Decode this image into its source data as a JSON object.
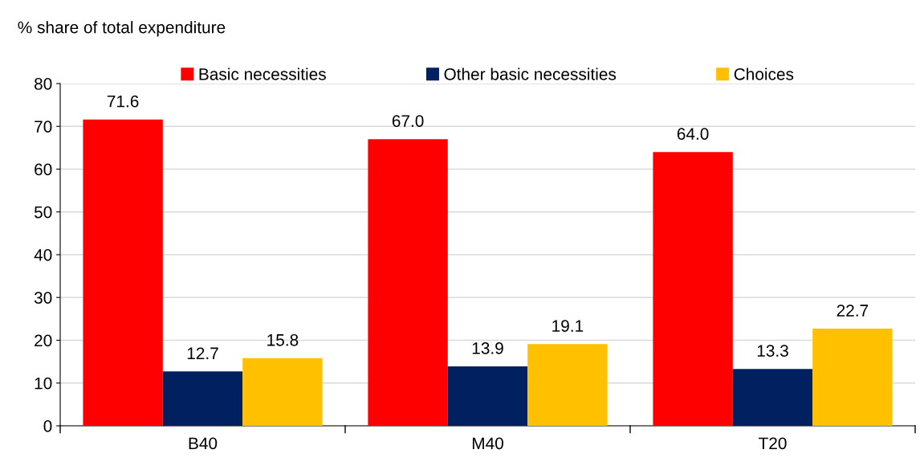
{
  "chart_data": {
    "type": "bar",
    "ylabel": "% share of total expenditure",
    "categories": [
      "B40",
      "M40",
      "T20"
    ],
    "series": [
      {
        "name": "Basic necessities",
        "color": "#ff0000",
        "values": [
          71.6,
          67.0,
          64.0
        ],
        "value_labels": [
          "71.6",
          "67.0",
          "64.0"
        ]
      },
      {
        "name": "Other basic necessities",
        "color": "#002060",
        "values": [
          12.7,
          13.9,
          13.3
        ],
        "value_labels": [
          "12.7",
          "13.9",
          "13.3"
        ]
      },
      {
        "name": "Choices",
        "color": "#ffc000",
        "values": [
          15.8,
          19.1,
          22.7
        ],
        "value_labels": [
          "15.8",
          "19.1",
          "22.7"
        ]
      }
    ],
    "ylim": [
      0,
      80
    ],
    "yticks": [
      0,
      10,
      20,
      30,
      40,
      50,
      60,
      70,
      80
    ],
    "grid": "y",
    "legend": "top"
  }
}
